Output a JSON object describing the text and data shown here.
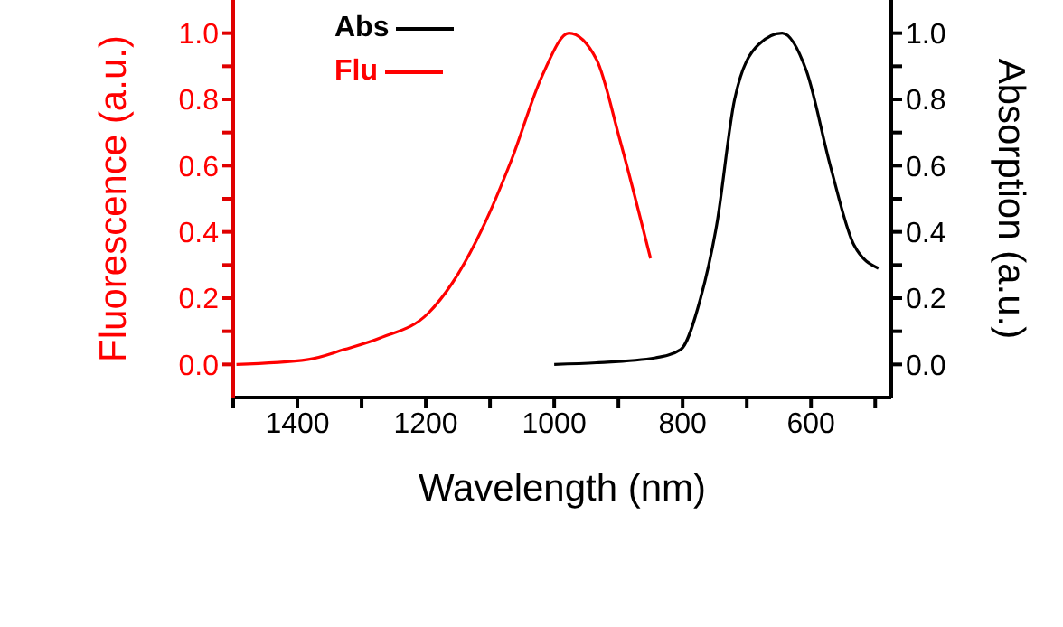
{
  "chart_data": {
    "type": "line",
    "xlabel": "Wavelength (nm)",
    "ylabel": "Fluorescence (a.u.)",
    "y2label": "Absorption (a.u.)",
    "xlim": [
      1500,
      475
    ],
    "xticks": [
      {
        "value": 1500,
        "label": null
      },
      1400,
      {
        "value": 1300,
        "label": null
      },
      1200,
      {
        "value": 1100,
        "label": null
      },
      1000,
      {
        "value": 900,
        "label": null
      },
      800,
      {
        "value": 700,
        "label": null
      },
      600,
      {
        "value": 500,
        "label": null
      }
    ],
    "ylim": [
      -0.1,
      1.1
    ],
    "yticks": [
      {
        "value": 0,
        "label": "0.0"
      },
      {
        "value": 0.1,
        "label": null
      },
      {
        "value": 0.2,
        "label": "0.2"
      },
      {
        "value": 0.3,
        "label": null
      },
      {
        "value": 0.4,
        "label": "0.4"
      },
      {
        "value": 0.5,
        "label": null
      },
      {
        "value": 0.6,
        "label": "0.6"
      },
      {
        "value": 0.7,
        "label": null
      },
      {
        "value": 0.8,
        "label": "0.8"
      },
      {
        "value": 0.9,
        "label": null
      },
      {
        "value": 1,
        "label": "1.0"
      }
    ],
    "y2lim": [
      -0.1,
      1.1
    ],
    "y2ticks": [
      {
        "value": 0,
        "label": "0.0"
      },
      {
        "value": 0.1,
        "label": null
      },
      {
        "value": 0.2,
        "label": "0.2"
      },
      {
        "value": 0.3,
        "label": null
      },
      {
        "value": 0.4,
        "label": "0.4"
      },
      {
        "value": 0.5,
        "label": null
      },
      {
        "value": 0.6,
        "label": "0.6"
      },
      {
        "value": 0.7,
        "label": null
      },
      {
        "value": 0.8,
        "label": "0.8"
      },
      {
        "value": 0.9,
        "label": null
      },
      {
        "value": 1,
        "label": "1.0"
      }
    ],
    "grid": false,
    "legend": "top left",
    "marker": "none",
    "line_style": "solid",
    "series": [
      {
        "name": "Abs",
        "color": "#000000",
        "axis": "y2",
        "x": [
          1000,
          934,
          842,
          803,
          772,
          747,
          719,
          682,
          645,
          607,
          570,
          533,
          495
        ],
        "values": [
          0.0,
          0.005,
          0.02,
          0.045,
          0.2,
          0.42,
          0.8,
          0.965,
          1.0,
          0.885,
          0.6,
          0.36,
          0.29
        ]
      },
      {
        "name": "Flu",
        "color": "#ff0000",
        "axis": "y",
        "x": [
          1495,
          1383,
          1327,
          1271,
          1196,
          1159,
          1112,
          1066,
          1019,
          977,
          934,
          898,
          850
        ],
        "values": [
          0.0,
          0.015,
          0.045,
          0.08,
          0.155,
          0.245,
          0.41,
          0.62,
          0.87,
          1.0,
          0.92,
          0.68,
          0.32
        ]
      }
    ]
  }
}
